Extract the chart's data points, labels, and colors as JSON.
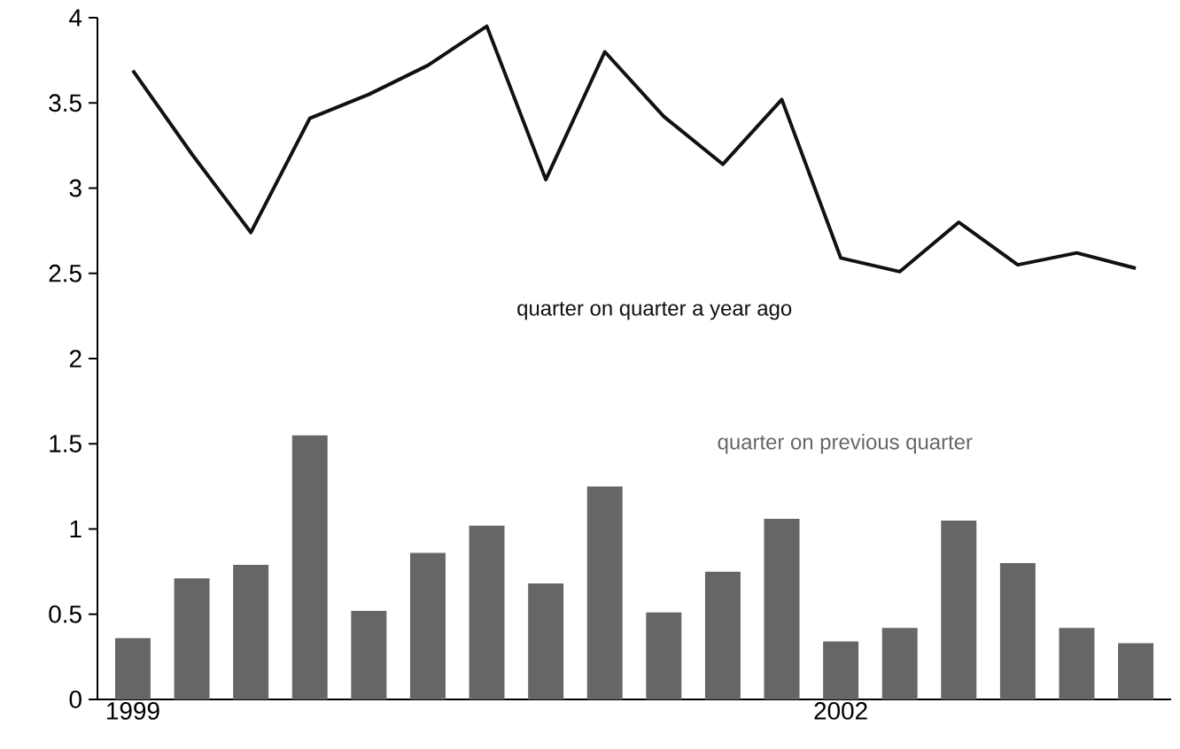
{
  "chart_data": {
    "type": "bar",
    "categories": [
      "1999",
      null,
      null,
      null,
      null,
      null,
      null,
      null,
      null,
      null,
      null,
      null,
      "2002",
      null,
      null,
      null,
      null,
      null
    ],
    "series": [
      {
        "name": "quarter on previous quarter",
        "color": "#666666",
        "values": [
          0.36,
          0.71,
          0.79,
          1.55,
          0.52,
          0.86,
          1.02,
          0.68,
          1.25,
          0.51,
          0.75,
          1.06,
          0.34,
          0.42,
          1.05,
          0.8,
          0.42,
          0.33
        ]
      },
      {
        "name": "quarter on quarter a year ago",
        "type": "line",
        "color": "#111111",
        "values": [
          3.69,
          3.2,
          2.74,
          3.41,
          3.55,
          3.72,
          3.95,
          3.05,
          3.8,
          3.42,
          3.14,
          3.52,
          2.59,
          2.51,
          2.8,
          2.55,
          2.62,
          2.53
        ]
      }
    ],
    "ylim": [
      0,
      4
    ],
    "yticks": [
      0,
      0.5,
      1,
      1.5,
      2,
      2.5,
      3,
      3.5,
      4
    ],
    "grid": false,
    "legend": false,
    "marker": "none",
    "line_style": "solid"
  }
}
